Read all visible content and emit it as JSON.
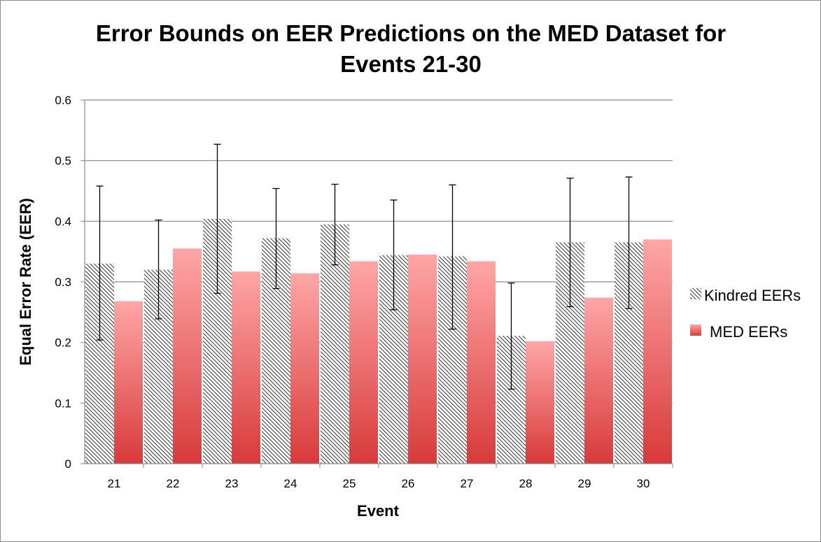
{
  "chart_data": {
    "type": "bar",
    "title": [
      "Error Bounds on EER Predictions on the MED Dataset for",
      "Events 21-30"
    ],
    "xlabel": "Event",
    "ylabel": "Equal Error Rate (EER)",
    "ylim": [
      0,
      0.6
    ],
    "yticks": [
      "0",
      "0.1",
      "0.2",
      "0.3",
      "0.4",
      "0.5",
      "0.6"
    ],
    "grid": true,
    "legend_position": "right",
    "categories": [
      "21",
      "22",
      "23",
      "24",
      "25",
      "26",
      "27",
      "28",
      "29",
      "30"
    ],
    "series": [
      {
        "name": "Kindred EERs",
        "pattern": "hatched",
        "color": "#000000",
        "values": [
          0.33,
          0.32,
          0.404,
          0.372,
          0.395,
          0.344,
          0.342,
          0.211,
          0.365,
          0.365
        ],
        "error_low": [
          0.204,
          0.239,
          0.281,
          0.289,
          0.328,
          0.254,
          0.222,
          0.123,
          0.259,
          0.256
        ],
        "error_high": [
          0.458,
          0.402,
          0.527,
          0.454,
          0.461,
          0.435,
          0.46,
          0.298,
          0.471,
          0.473
        ]
      },
      {
        "name": "MED EERs",
        "pattern": "gradient",
        "color_top": "#ffa6a6",
        "color_bottom": "#d83a3a",
        "values": [
          0.268,
          0.355,
          0.317,
          0.314,
          0.334,
          0.345,
          0.334,
          0.202,
          0.274,
          0.37
        ]
      }
    ]
  }
}
